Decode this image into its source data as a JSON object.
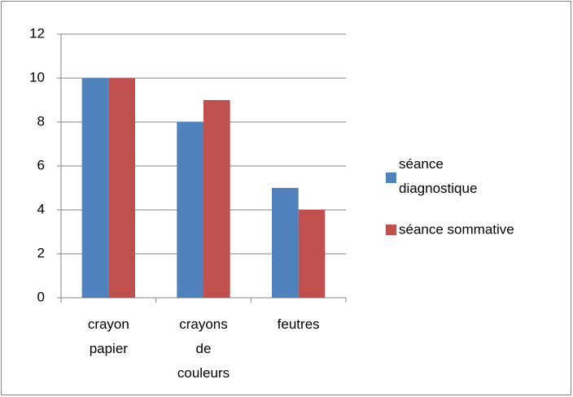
{
  "chart_data": {
    "type": "bar",
    "categories": [
      "crayon papier",
      "crayons de couleurs",
      "feutres"
    ],
    "series": [
      {
        "name": "séance diagnostique",
        "color": "#4f81bd",
        "values": [
          10,
          8,
          5
        ]
      },
      {
        "name": "séance sommative",
        "color": "#c0504d",
        "values": [
          10,
          9,
          4
        ]
      }
    ],
    "ylim": [
      0,
      12
    ],
    "yticks": [
      0,
      2,
      4,
      6,
      8,
      10,
      12
    ],
    "grid": true,
    "legend": "right"
  }
}
